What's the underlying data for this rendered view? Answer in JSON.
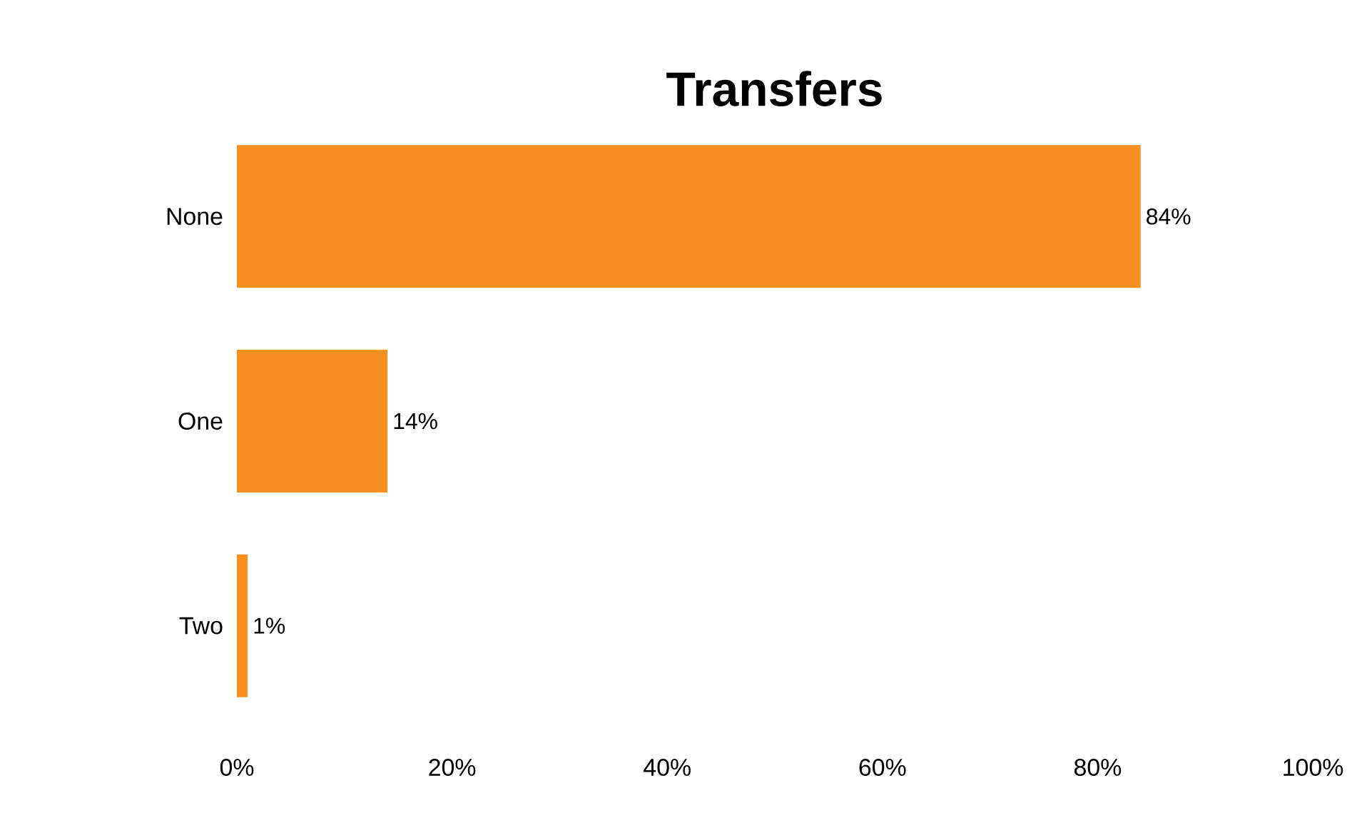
{
  "chart_data": {
    "type": "bar",
    "orientation": "horizontal",
    "title": "Transfers",
    "categories": [
      "None",
      "One",
      "Two"
    ],
    "values": [
      84,
      14,
      1
    ],
    "value_labels": [
      "84%",
      "14%",
      "1%"
    ],
    "color": "#f7901e",
    "xlim": [
      0,
      100
    ],
    "xticks": [
      {
        "value": 0,
        "label": "0%"
      },
      {
        "value": 20,
        "label": "20%"
      },
      {
        "value": 40,
        "label": "40%"
      },
      {
        "value": 60,
        "label": "60%"
      },
      {
        "value": 80,
        "label": "80%"
      },
      {
        "value": 100,
        "label": "100%"
      }
    ]
  }
}
